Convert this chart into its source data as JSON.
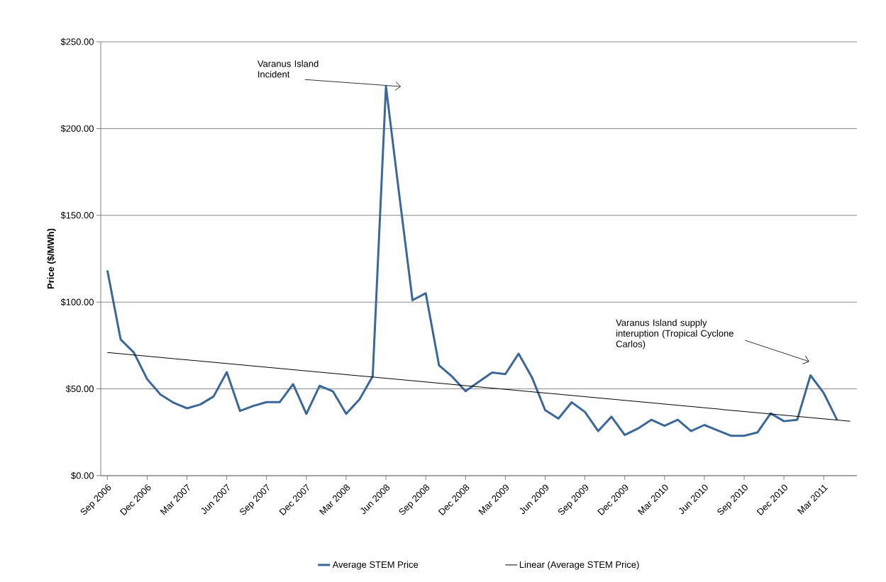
{
  "chart_data": {
    "type": "line",
    "ylabel": "Price ($/MWh)",
    "x": [
      "2006-09",
      "2006-10",
      "2006-11",
      "2006-12",
      "2007-01",
      "2007-02",
      "2007-03",
      "2007-04",
      "2007-05",
      "2007-06",
      "2007-07",
      "2007-08",
      "2007-09",
      "2007-10",
      "2007-11",
      "2007-12",
      "2008-01",
      "2008-02",
      "2008-03",
      "2008-04",
      "2008-05",
      "2008-06",
      "2008-07",
      "2008-08",
      "2008-09",
      "2008-10",
      "2008-11",
      "2008-12",
      "2009-01",
      "2009-02",
      "2009-03",
      "2009-04",
      "2009-05",
      "2009-06",
      "2009-07",
      "2009-08",
      "2009-09",
      "2009-10",
      "2009-11",
      "2009-12",
      "2010-01",
      "2010-02",
      "2010-03",
      "2010-04",
      "2010-05",
      "2010-06",
      "2010-07",
      "2010-08",
      "2010-09",
      "2010-10",
      "2010-11",
      "2010-12",
      "2011-01",
      "2011-02",
      "2011-03",
      "2011-04"
    ],
    "series": [
      {
        "name": "Average STEM Price",
        "color": "#3c6799",
        "values": [
          118.3,
          78.5,
          70.9,
          55.6,
          46.8,
          42.0,
          38.8,
          41.0,
          45.6,
          59.6,
          37.3,
          40.2,
          42.4,
          42.4,
          52.7,
          35.6,
          51.8,
          48.6,
          35.6,
          43.9,
          57.3,
          224.3,
          162,
          101.1,
          105.1,
          63.6,
          57.0,
          48.7,
          54.1,
          59.4,
          58.5,
          70.3,
          56.7,
          37.8,
          32.9,
          42.3,
          36.7,
          25.7,
          34.0,
          23.4,
          27.2,
          32.2,
          28.7,
          32.2,
          25.7,
          29.2,
          26.1,
          23.0,
          23.0,
          24.9,
          35.9,
          31.4,
          32.2,
          57.8,
          47.6,
          32.2
        ]
      },
      {
        "name": "Linear (Average STEM Price)",
        "color": "#000000",
        "x": [
          "2006-09",
          "2011-05"
        ],
        "values": [
          71.0,
          31.3
        ]
      }
    ],
    "xlim": [
      "2006-08-16",
      "2011-05-16"
    ],
    "xticks": [
      {
        "value": "2006-09",
        "label": "Sep 2006"
      },
      {
        "value": "2006-12",
        "label": "Dec 2006"
      },
      {
        "value": "2007-03",
        "label": "Mar 2007"
      },
      {
        "value": "2007-06",
        "label": "Jun 2007"
      },
      {
        "value": "2007-09",
        "label": "Sep 2007"
      },
      {
        "value": "2007-12",
        "label": "Dec 2007"
      },
      {
        "value": "2008-03",
        "label": "Mar 2008"
      },
      {
        "value": "2008-06",
        "label": "Jun 2008"
      },
      {
        "value": "2008-09",
        "label": "Sep 2008"
      },
      {
        "value": "2008-12",
        "label": "Dec 2008"
      },
      {
        "value": "2009-03",
        "label": "Mar 2009"
      },
      {
        "value": "2009-06",
        "label": "Jun 2009"
      },
      {
        "value": "2009-09",
        "label": "Sep 2009"
      },
      {
        "value": "2009-12",
        "label": "Dec 2009"
      },
      {
        "value": "2010-03",
        "label": "Mar 2010"
      },
      {
        "value": "2010-06",
        "label": "Jun 2010"
      },
      {
        "value": "2010-09",
        "label": "Sep 2010"
      },
      {
        "value": "2010-12",
        "label": "Dec 2010"
      },
      {
        "value": "2011-03",
        "label": "Mar 2011"
      }
    ],
    "ylim": [
      0,
      250
    ],
    "yticks": [
      {
        "value": 0,
        "label": "$0.00"
      },
      {
        "value": 50,
        "label": "$50.00"
      },
      {
        "value": 100,
        "label": "$100.00"
      },
      {
        "value": 150,
        "label": "$150.00"
      },
      {
        "value": 200,
        "label": "$200.00"
      },
      {
        "value": 250,
        "label": "$250.00"
      }
    ],
    "grid": "y",
    "legend": "bottom",
    "annotations": [
      "Varanus Island Incident",
      "Varanus Island supply interuption (Tropical Cyclone Carlos)"
    ]
  }
}
